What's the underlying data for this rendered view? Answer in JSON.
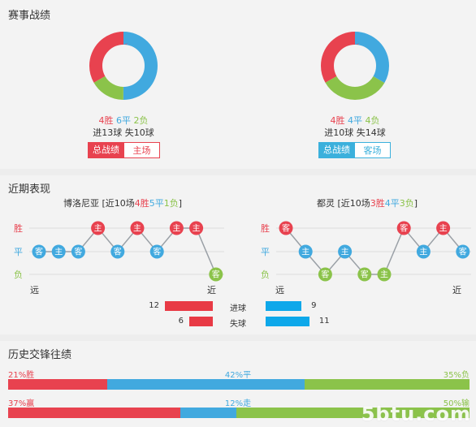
{
  "section1": {
    "title": "赛事战绩",
    "left": {
      "chart": {
        "wins": 4,
        "draws": 6,
        "losses": 2
      },
      "win_text": "4胜",
      "draw_text": "6平",
      "loss_text": "2负",
      "goals_for": "进13球",
      "goals_against": "失10球",
      "btn_total": "总战绩",
      "btn_venue": "主场",
      "accent": "#e8424f"
    },
    "right": {
      "chart": {
        "wins": 4,
        "draws": 4,
        "losses": 4
      },
      "win_text": "4胜",
      "draw_text": "4平",
      "loss_text": "4负",
      "goals_for": "进10球",
      "goals_against": "失14球",
      "btn_total": "总战绩",
      "btn_venue": "客场",
      "accent": "#3bb0dc"
    }
  },
  "section2": {
    "title": "近期表现",
    "y_labels": {
      "win": "胜",
      "draw": "平",
      "loss": "负"
    },
    "x_labels": {
      "far": "远",
      "near": "近"
    },
    "left": {
      "team": "博洛尼亚",
      "summary_prefix": " [近10场",
      "wins": "4胜",
      "draws": "5平",
      "losses": "1负",
      "summary_suffix": "]",
      "matches": [
        {
          "venue": "客",
          "result": "draw"
        },
        {
          "venue": "主",
          "result": "draw"
        },
        {
          "venue": "客",
          "result": "draw"
        },
        {
          "venue": "主",
          "result": "win"
        },
        {
          "venue": "客",
          "result": "draw"
        },
        {
          "venue": "主",
          "result": "win"
        },
        {
          "venue": "客",
          "result": "draw"
        },
        {
          "venue": "主",
          "result": "win"
        },
        {
          "venue": "主",
          "result": "win"
        },
        {
          "venue": "客",
          "result": "loss"
        }
      ]
    },
    "right": {
      "team": "都灵",
      "summary_prefix": " [近10场",
      "wins": "3胜",
      "draws": "4平",
      "losses": "3负",
      "summary_suffix": "]",
      "matches": [
        {
          "venue": "客",
          "result": "win"
        },
        {
          "venue": "主",
          "result": "draw"
        },
        {
          "venue": "客",
          "result": "loss"
        },
        {
          "venue": "主",
          "result": "draw"
        },
        {
          "venue": "客",
          "result": "loss"
        },
        {
          "venue": "主",
          "result": "loss"
        },
        {
          "venue": "客",
          "result": "win"
        },
        {
          "venue": "主",
          "result": "draw"
        },
        {
          "venue": "主",
          "result": "win"
        },
        {
          "venue": "客",
          "result": "draw"
        }
      ]
    },
    "stats": {
      "goals_label": "进球",
      "against_label": "失球",
      "left_goals": 12,
      "left_against": 6,
      "right_goals": 9,
      "right_against": 11
    }
  },
  "section3": {
    "title": "历史交锋往绩",
    "row1": {
      "win_pct": 21,
      "draw_pct": 42,
      "loss_pct": 35,
      "win_text": "21%胜",
      "draw_text": "42%平",
      "loss_text": "35%负"
    },
    "row2": {
      "win_pct": 37,
      "draw_pct": 12,
      "loss_pct": 50,
      "win_text": "37%赢",
      "draw_text": "12%走",
      "loss_text": "50%输"
    }
  },
  "watermark": "5btu.com",
  "colors": {
    "win": "#e8424f",
    "draw": "#41a9df",
    "loss": "#8bc34a",
    "goals_left": "#e83a45",
    "goals_right": "#0ea8ea"
  }
}
